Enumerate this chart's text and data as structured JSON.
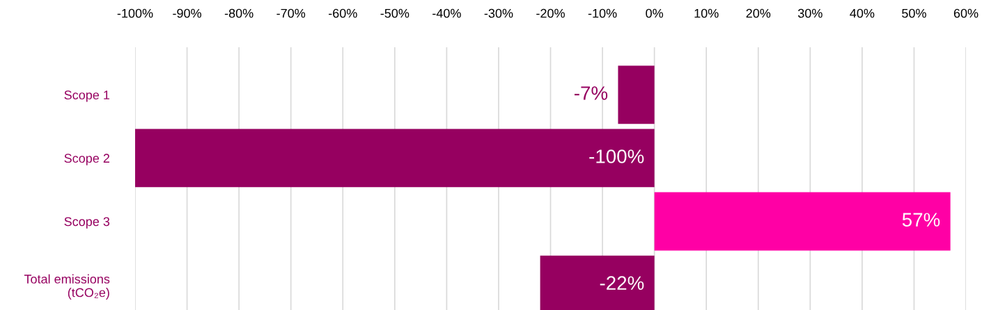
{
  "chart_data": {
    "type": "bar",
    "orientation": "horizontal",
    "categories": [
      "Scope 1",
      "Scope 2",
      "Scope 3",
      "Total emissions\n(tCO₂e)"
    ],
    "values": [
      -7,
      -100,
      57,
      -22
    ],
    "colors": [
      "#960060",
      "#960060",
      "#ff00a5",
      "#960060"
    ],
    "value_labels": [
      "-7%",
      "-100%",
      "57%",
      "-22%"
    ],
    "xlim": [
      -100,
      60
    ],
    "xticks": [
      {
        "value": -100,
        "label": "-100%"
      },
      {
        "value": -90,
        "label": "-90%"
      },
      {
        "value": -80,
        "label": "-80%"
      },
      {
        "value": -70,
        "label": "-70%"
      },
      {
        "value": -60,
        "label": "-60%"
      },
      {
        "value": -50,
        "label": "-50%"
      },
      {
        "value": -40,
        "label": "-40%"
      },
      {
        "value": -30,
        "label": "-30%"
      },
      {
        "value": -20,
        "label": "-20%"
      },
      {
        "value": -10,
        "label": "-10%"
      },
      {
        "value": 0,
        "label": "0%"
      },
      {
        "value": 10,
        "label": "10%"
      },
      {
        "value": 20,
        "label": "20%"
      },
      {
        "value": 30,
        "label": "30%"
      },
      {
        "value": 40,
        "label": "40%"
      },
      {
        "value": 50,
        "label": "50%"
      },
      {
        "value": 60,
        "label": "60%"
      }
    ],
    "grid": "x",
    "legend": false
  }
}
